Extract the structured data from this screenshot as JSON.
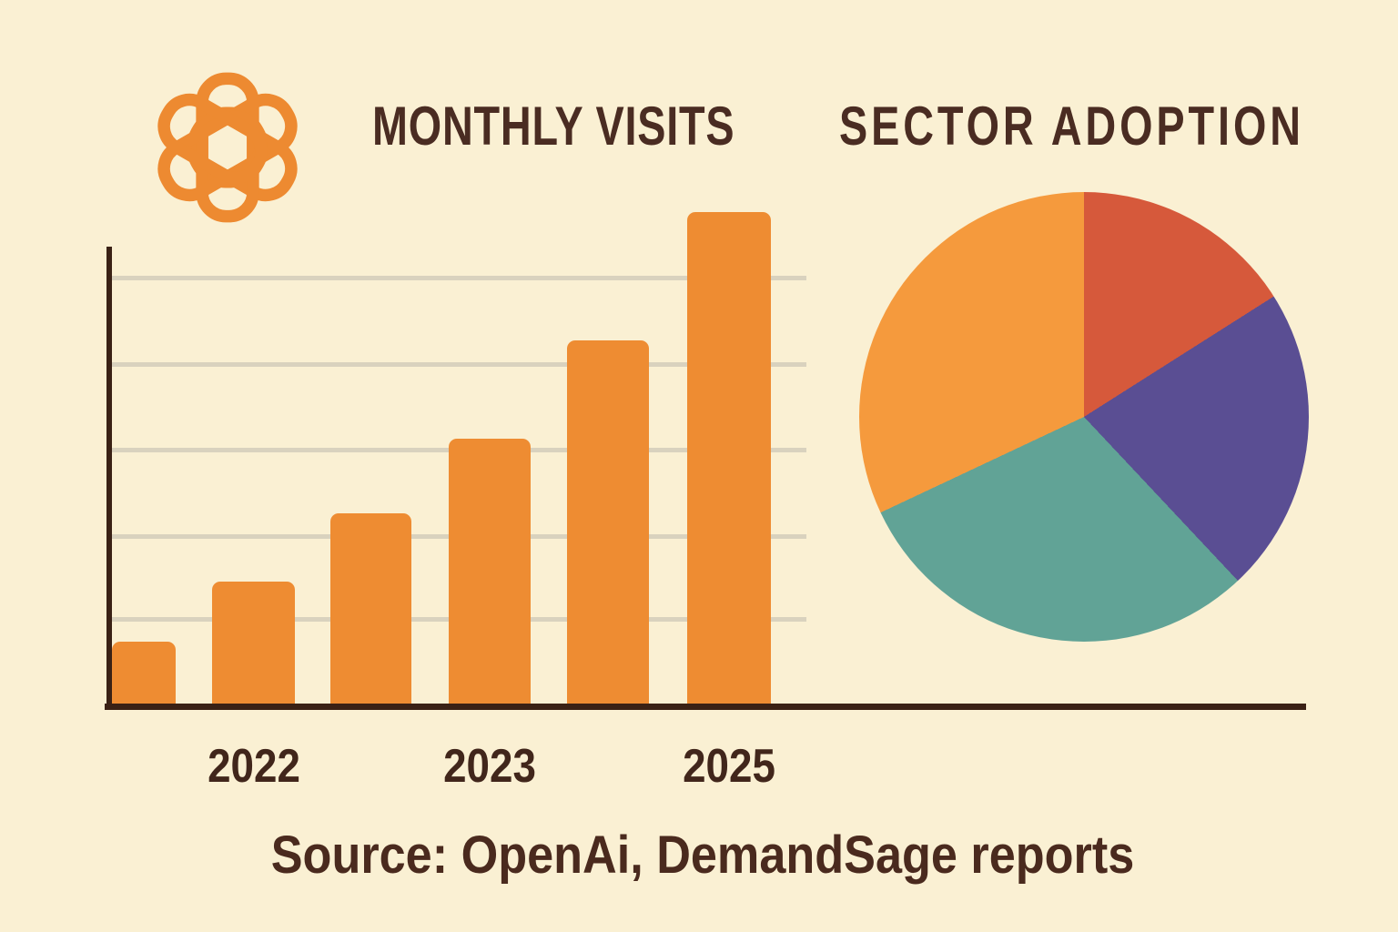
{
  "page": {
    "background_color": "#FAF0D3",
    "title_color": "#4A2C22",
    "axis_color": "#3A2115",
    "gridline_color": "#D9D2BE",
    "xlabel_color": "#41261B",
    "source_color": "#4A2A1E",
    "logo_color": "#ED8A31"
  },
  "header": {
    "logo": "openai-flower-logo",
    "left_title": "MONTHLY VISITS",
    "right_title": "SECTOR ADOPTION"
  },
  "source_note": {
    "text": "Source: OpenAi, DemandSage reports"
  },
  "chart_data": [
    {
      "type": "bar",
      "title": "MONTHLY VISITS",
      "categories": [
        "",
        "2022",
        "",
        "2023",
        "",
        "2025"
      ],
      "values_pct_of_max": [
        13,
        25,
        39,
        54,
        74,
        100
      ],
      "xlabel": "",
      "ylabel": "",
      "y_tick_labels_visible": false,
      "gridline_count": 5,
      "grid": true,
      "legend": false,
      "bar_color": "#EE8C32",
      "note": "no numeric y-axis shown; values are bar heights as percent of tallest (2025) bar"
    },
    {
      "type": "pie",
      "title": "SECTOR ADOPTION",
      "start_angle_deg": 0,
      "direction": "clockwise",
      "legend": false,
      "slices": [
        {
          "name": "slice-red",
          "color": "#D6593B",
          "percent": 16
        },
        {
          "name": "slice-purple",
          "color": "#5A4E93",
          "percent": 22
        },
        {
          "name": "slice-teal",
          "color": "#61A396",
          "percent": 30
        },
        {
          "name": "slice-orange",
          "color": "#F59A3D",
          "percent": 32
        }
      ]
    }
  ]
}
